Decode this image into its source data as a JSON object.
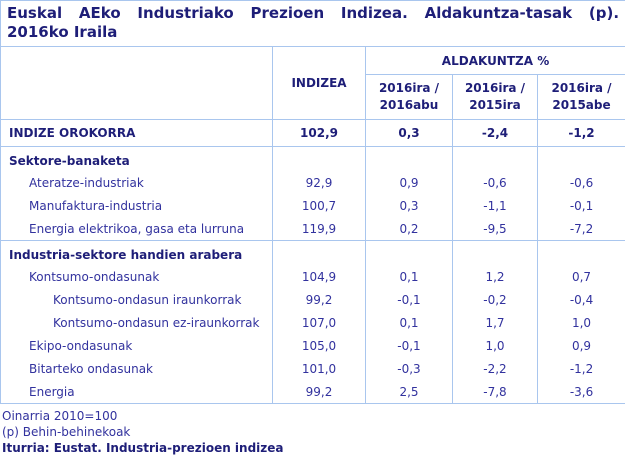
{
  "title": {
    "line1": "Euskal AEko Industriako Prezioen Indizea. Aldakuntza-tasak (p).",
    "line2": "2016ko Iraila"
  },
  "table": {
    "header": {
      "index_col": "INDIZEA",
      "change_group": "ALDAKUNTZA %",
      "periods": [
        "2016ira / 2016abu",
        "2016ira / 2015ira",
        "2016ira / 2015abe"
      ]
    },
    "rows": [
      {
        "label": "INDIZE OROKORRA",
        "values": [
          "102,9",
          "0,3",
          "-2,4",
          "-1,2"
        ]
      },
      {
        "label": "Sektore-banaketa",
        "values": [
          "",
          "",
          "",
          ""
        ]
      },
      {
        "label": "Ateratze-industriak",
        "values": [
          "92,9",
          "0,9",
          "-0,6",
          "-0,6"
        ]
      },
      {
        "label": "Manufaktura-industria",
        "values": [
          "100,7",
          "0,3",
          "-1,1",
          "-0,1"
        ]
      },
      {
        "label": "Energia elektrikoa, gasa eta lurruna",
        "values": [
          "119,9",
          "0,2",
          "-9,5",
          "-7,2"
        ]
      },
      {
        "label": "Industria-sektore handien arabera",
        "values": [
          "",
          "",
          "",
          ""
        ]
      },
      {
        "label": "Kontsumo-ondasunak",
        "values": [
          "104,9",
          "0,1",
          "1,2",
          "0,7"
        ]
      },
      {
        "label": "Kontsumo-ondasun iraunkorrak",
        "values": [
          "99,2",
          "-0,1",
          "-0,2",
          "-0,4"
        ]
      },
      {
        "label": "Kontsumo-ondasun ez-iraunkorrak",
        "values": [
          "107,0",
          "0,1",
          "1,7",
          "1,0"
        ]
      },
      {
        "label": "Ekipo-ondasunak",
        "values": [
          "105,0",
          "-0,1",
          "1,0",
          "0,9"
        ]
      },
      {
        "label": "Bitarteko ondasunak",
        "values": [
          "101,0",
          "-0,3",
          "-2,2",
          "-1,2"
        ]
      },
      {
        "label": "Energia",
        "values": [
          "99,2",
          "2,5",
          "-7,8",
          "-3,6"
        ]
      }
    ]
  },
  "footer": {
    "base_note": "Oinarria 2010=100",
    "provisional_note": "(p) Behin-behinekoak",
    "source": "Iturria: Eustat. Industria-prezioen indizea"
  },
  "colors": {
    "border": "#a9c6ee",
    "title_text": "#1e1e78",
    "body_text": "#32329e"
  }
}
